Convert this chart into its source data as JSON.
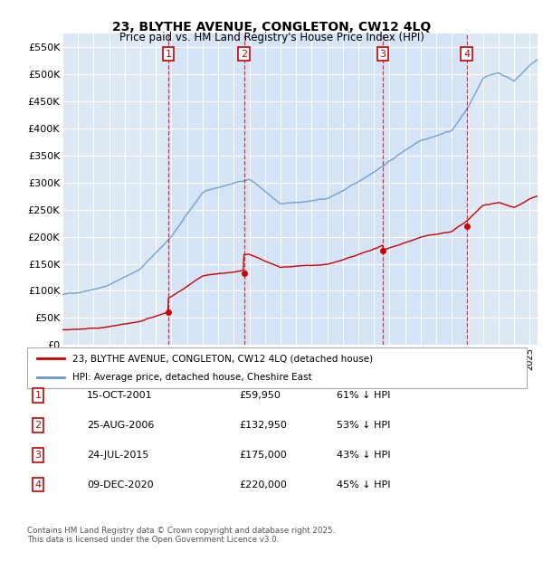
{
  "title": "23, BLYTHE AVENUE, CONGLETON, CW12 4LQ",
  "subtitle": "Price paid vs. HM Land Registry's House Price Index (HPI)",
  "ylim": [
    0,
    575000
  ],
  "yticks": [
    0,
    50000,
    100000,
    150000,
    200000,
    250000,
    300000,
    350000,
    400000,
    450000,
    500000,
    550000
  ],
  "ytick_labels": [
    "£0",
    "£50K",
    "£100K",
    "£150K",
    "£200K",
    "£250K",
    "£300K",
    "£350K",
    "£400K",
    "£450K",
    "£500K",
    "£550K"
  ],
  "background_color": "#dde8f5",
  "grid_color": "#ffffff",
  "red_color": "#cc0000",
  "blue_color": "#6699cc",
  "sale_dates": [
    2001.79,
    2006.65,
    2015.56,
    2020.94
  ],
  "sale_prices": [
    59950,
    132950,
    175000,
    220000
  ],
  "sale_labels": [
    "1",
    "2",
    "3",
    "4"
  ],
  "table_rows": [
    {
      "num": "1",
      "date": "15-OCT-2001",
      "price": "£59,950",
      "hpi": "61% ↓ HPI"
    },
    {
      "num": "2",
      "date": "25-AUG-2006",
      "price": "£132,950",
      "hpi": "53% ↓ HPI"
    },
    {
      "num": "3",
      "date": "24-JUL-2015",
      "price": "£175,000",
      "hpi": "43% ↓ HPI"
    },
    {
      "num": "4",
      "date": "09-DEC-2020",
      "price": "£220,000",
      "hpi": "45% ↓ HPI"
    }
  ],
  "footer": "Contains HM Land Registry data © Crown copyright and database right 2025.\nThis data is licensed under the Open Government Licence v3.0.",
  "legend_red": "23, BLYTHE AVENUE, CONGLETON, CW12 4LQ (detached house)",
  "legend_blue": "HPI: Average price, detached house, Cheshire East",
  "xmin": 1995,
  "xmax": 2025.5
}
